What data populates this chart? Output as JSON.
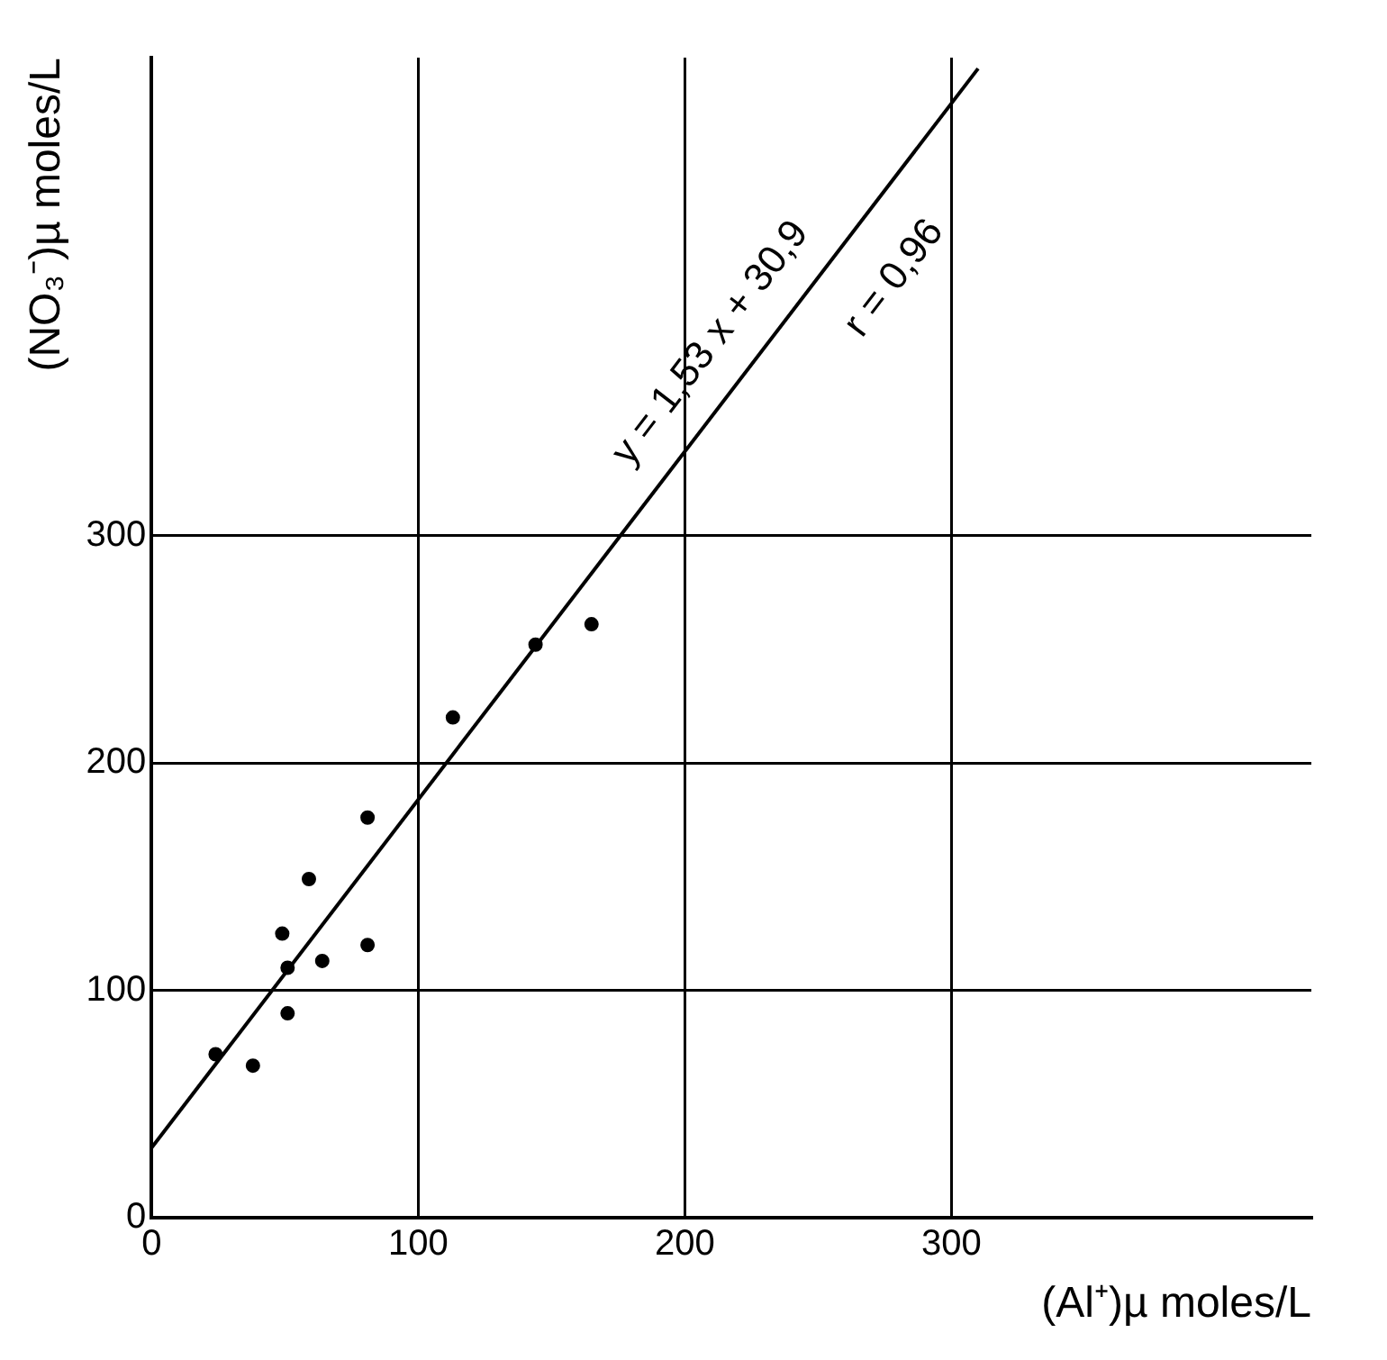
{
  "chart_data": {
    "type": "scatter",
    "xlabel": "(Al⁺)µ moles/L",
    "ylabel": "(NO₃⁻)µ moles/L",
    "xlim": [
      0,
      435
    ],
    "ylim": [
      0,
      510
    ],
    "xticks": [
      0,
      100,
      200,
      300
    ],
    "yticks": [
      0,
      100,
      200,
      300
    ],
    "grid": true,
    "legend": false,
    "marker": "circle",
    "annotations": [
      "y = 1,53 x + 30,9",
      "r = 0,96"
    ],
    "series": [
      {
        "type": "scatter",
        "color": "#000000",
        "x": [
          24,
          38,
          51,
          51,
          64,
          49,
          81,
          59,
          81,
          113,
          144,
          165
        ],
        "values": [
          72,
          67,
          90,
          110,
          113,
          125,
          120,
          149,
          176,
          220,
          252,
          261
        ]
      },
      {
        "type": "line",
        "color": "#000000",
        "marker": "none",
        "line_style": "solid",
        "x": [
          0,
          310
        ],
        "values": [
          30.9,
          505.2
        ]
      }
    ]
  }
}
